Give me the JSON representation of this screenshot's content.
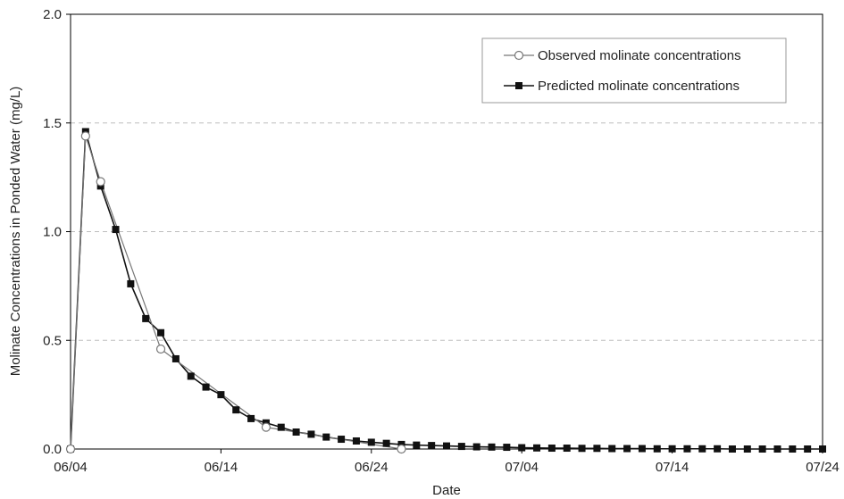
{
  "chart_data": {
    "type": "line",
    "xlabel": "Date",
    "ylabel": "Molinate Concentrations in Ponded Water (mg/L)",
    "xlim": [
      "06/04",
      "07/24"
    ],
    "ylim": [
      0,
      2.0
    ],
    "x_ticks": [
      "06/04",
      "06/14",
      "06/24",
      "07/04",
      "07/14",
      "07/24"
    ],
    "y_ticks": [
      "0.0",
      "0.5",
      "1.0",
      "1.5",
      "2.0"
    ],
    "grid": "horizontal dashed",
    "legend_position": "top-right",
    "series": [
      {
        "name": "Observed molinate concentrations",
        "marker": "open-circle",
        "color": "#777777",
        "x": [
          "06/04",
          "06/05",
          "06/06",
          "06/10",
          "06/17",
          "06/26"
        ],
        "y": [
          0.0,
          1.44,
          1.23,
          0.46,
          0.1,
          0.0
        ]
      },
      {
        "name": "Predicted molinate concentrations",
        "marker": "filled-square",
        "color": "#111111",
        "x": [
          "06/04",
          "06/05",
          "06/06",
          "06/07",
          "06/08",
          "06/09",
          "06/10",
          "06/11",
          "06/12",
          "06/13",
          "06/14",
          "06/15",
          "06/16",
          "06/17",
          "06/18",
          "06/19",
          "06/20",
          "06/21",
          "06/22",
          "06/23",
          "06/24",
          "06/25",
          "06/26",
          "06/27",
          "06/28",
          "06/29",
          "06/30",
          "07/01",
          "07/02",
          "07/03",
          "07/04",
          "07/05",
          "07/06",
          "07/07",
          "07/08",
          "07/09",
          "07/10",
          "07/11",
          "07/12",
          "07/13",
          "07/14",
          "07/15",
          "07/16",
          "07/17",
          "07/18",
          "07/19",
          "07/20",
          "07/21",
          "07/22",
          "07/23",
          "07/24"
        ],
        "y": [
          0.0,
          1.46,
          1.21,
          1.01,
          0.76,
          0.6,
          0.535,
          0.415,
          0.335,
          0.285,
          0.25,
          0.18,
          0.14,
          0.12,
          0.1,
          0.078,
          0.068,
          0.055,
          0.045,
          0.037,
          0.031,
          0.026,
          0.021,
          0.018,
          0.016,
          0.014,
          0.012,
          0.01,
          0.009,
          0.008,
          0.006,
          0.005,
          0.004,
          0.004,
          0.003,
          0.003,
          0.002,
          0.002,
          0.002,
          0.001,
          0.001,
          0.001,
          0.001,
          0.001,
          0.0,
          0.0,
          0.0,
          0.0,
          0.0,
          0.0,
          0.0
        ]
      }
    ]
  }
}
